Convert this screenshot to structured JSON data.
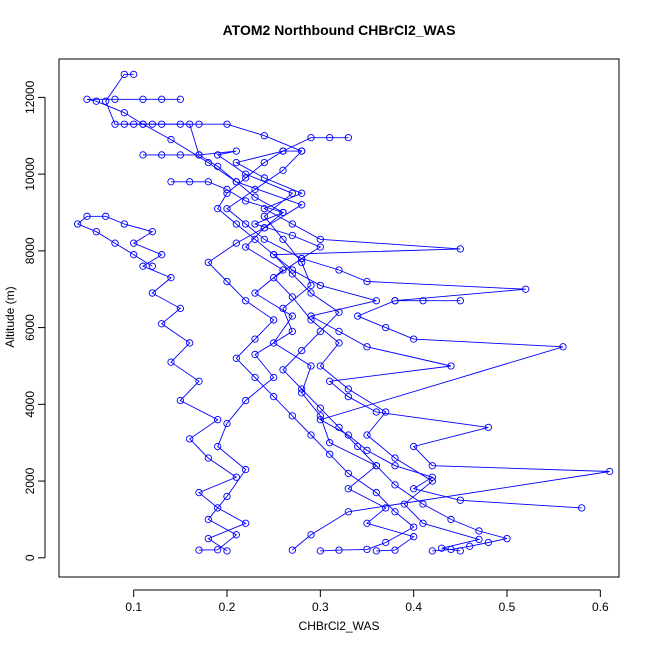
{
  "chart_data": {
    "type": "scatter",
    "title": "ATOM2 Northbound CHBrCl2_WAS",
    "xlabel": "CHBrCl2_WAS",
    "ylabel": "Altitude (m)",
    "xlim": [
      0.02,
      0.62
    ],
    "ylim": [
      -500,
      13000
    ],
    "x_ticks": [
      0.1,
      0.2,
      0.3,
      0.4,
      0.5,
      0.6
    ],
    "y_ticks": [
      0,
      2000,
      4000,
      6000,
      8000,
      10000,
      12000
    ],
    "x_tick_labels": [
      "0.1",
      "0.2",
      "0.3",
      "0.4",
      "0.5",
      "0.6"
    ],
    "y_tick_labels": [
      "0",
      "2000",
      "4000",
      "6000",
      "8000",
      "10000",
      "12000"
    ],
    "grid": false,
    "legend": "none",
    "marker": "open-circle",
    "connected": true,
    "color": "#0000ff",
    "series": [
      {
        "x": [
          0.17,
          0.19,
          0.21,
          0.18,
          0.2,
          0.22,
          0.19,
          0.2,
          0.22,
          0.25,
          0.23,
          0.27,
          0.26,
          0.29,
          0.28,
          0.26,
          0.24,
          0.27,
          0.22,
          0.19,
          0.21,
          0.17,
          0.16,
          0.12,
          0.1,
          0.08,
          0.07,
          0.09,
          0.1
        ],
        "y": [
          200,
          210,
          600,
          1000,
          1600,
          2300,
          2900,
          3500,
          4100,
          4700,
          5300,
          5900,
          6500,
          7100,
          7700,
          8300,
          8900,
          9500,
          10000,
          10500,
          10600,
          10500,
          11300,
          11300,
          11300,
          11300,
          11900,
          12600,
          12600
        ]
      },
      {
        "x": [
          0.36,
          0.38,
          0.4,
          0.35,
          0.37,
          0.33,
          0.36,
          0.31,
          0.3,
          0.28,
          0.29,
          0.25,
          0.27,
          0.23,
          0.26,
          0.22,
          0.24,
          0.28,
          0.21,
          0.18,
          0.14,
          0.11,
          0.09,
          0.06,
          0.05,
          0.08,
          0.11,
          0.13,
          0.15
        ],
        "y": [
          180,
          200,
          550,
          900,
          1300,
          1800,
          2400,
          3000,
          3700,
          4300,
          5000,
          5600,
          6300,
          6900,
          7500,
          8100,
          8600,
          9200,
          9800,
          10300,
          10900,
          11300,
          11600,
          11900,
          11950,
          11950,
          11950,
          11950,
          11950
        ]
      },
      {
        "x": [
          0.45,
          0.43,
          0.47,
          0.41,
          0.39,
          0.42,
          0.38,
          0.35,
          0.37,
          0.33,
          0.3,
          0.32,
          0.29,
          0.27,
          0.25,
          0.28,
          0.24,
          0.22,
          0.2,
          0.23,
          0.26,
          0.28,
          0.24,
          0.2,
          0.17,
          0.15,
          0.13,
          0.11,
          0.09
        ],
        "y": [
          180,
          250,
          480,
          900,
          1400,
          2000,
          2600,
          3200,
          3800,
          4400,
          5000,
          5600,
          6200,
          6800,
          7300,
          7800,
          8300,
          8700,
          9100,
          9600,
          10100,
          10600,
          11000,
          11300,
          11300,
          11300,
          11300,
          11300,
          11300
        ]
      },
      {
        "x": [
          0.27,
          0.29,
          0.33,
          0.61,
          0.42,
          0.4,
          0.48,
          0.36,
          0.33,
          0.31,
          0.44,
          0.35,
          0.32,
          0.29,
          0.36,
          0.3,
          0.27,
          0.25,
          0.45,
          0.3,
          0.27,
          0.24,
          0.28,
          0.24,
          0.21,
          0.26,
          0.29,
          0.31,
          0.33
        ],
        "y": [
          200,
          600,
          1200,
          2250,
          2400,
          2900,
          3400,
          3800,
          4200,
          4600,
          5000,
          5500,
          5900,
          6300,
          6700,
          7100,
          7500,
          7900,
          8050,
          8300,
          8700,
          9100,
          9500,
          9900,
          10300,
          10600,
          10950,
          10950,
          10950
        ]
      },
      {
        "x": [
          0.58,
          0.45,
          0.4,
          0.42,
          0.38,
          0.35,
          0.33,
          0.3,
          0.56,
          0.4,
          0.37,
          0.34,
          0.38,
          0.45,
          0.41,
          0.38,
          0.52,
          0.35,
          0.32,
          0.28,
          0.3,
          0.27,
          0.23,
          0.26,
          0.22,
          0.2,
          0.18,
          0.16,
          0.14
        ],
        "y": [
          1300,
          1500,
          1800,
          2100,
          2400,
          2800,
          3200,
          3600,
          5500,
          5700,
          6000,
          6300,
          6700,
          6700,
          6700,
          6700,
          7000,
          7200,
          7500,
          7800,
          8100,
          8400,
          8700,
          9000,
          9300,
          9600,
          9800,
          9800,
          9800
        ]
      },
      {
        "x": [
          0.2,
          0.18,
          0.22,
          0.19,
          0.17,
          0.21,
          0.18,
          0.16,
          0.19,
          0.15,
          0.17,
          0.14,
          0.16,
          0.13,
          0.15,
          0.12,
          0.14,
          0.11,
          0.13,
          0.1,
          0.12,
          0.09,
          0.07,
          0.05,
          0.04,
          0.06,
          0.08,
          0.1,
          0.12
        ],
        "y": [
          180,
          500,
          900,
          1300,
          1700,
          2100,
          2600,
          3100,
          3600,
          4100,
          4600,
          5100,
          5600,
          6100,
          6500,
          6900,
          7300,
          7600,
          7900,
          8200,
          8500,
          8700,
          8900,
          8900,
          8700,
          8500,
          8200,
          7900,
          7600
        ]
      },
      {
        "x": [
          0.3,
          0.32,
          0.35,
          0.37,
          0.4,
          0.38,
          0.36,
          0.33,
          0.31,
          0.29,
          0.27,
          0.25,
          0.23,
          0.21,
          0.23,
          0.25,
          0.22,
          0.2,
          0.18,
          0.21,
          0.24,
          0.26,
          0.23,
          0.21,
          0.19,
          0.17,
          0.15,
          0.13,
          0.11
        ],
        "y": [
          180,
          200,
          220,
          400,
          800,
          1200,
          1700,
          2200,
          2700,
          3200,
          3700,
          4200,
          4700,
          5200,
          5700,
          6200,
          6700,
          7200,
          7700,
          8200,
          8600,
          9000,
          9400,
          9800,
          10200,
          10500,
          10500,
          10500,
          10500
        ]
      },
      {
        "x": [
          0.42,
          0.44,
          0.46,
          0.48,
          0.5,
          0.47,
          0.44,
          0.41,
          0.38,
          0.36,
          0.34,
          0.32,
          0.3,
          0.28,
          0.26,
          0.28,
          0.3,
          0.32,
          0.29,
          0.27,
          0.25,
          0.23,
          0.21,
          0.19,
          0.2,
          0.22,
          0.24,
          0.26,
          0.28
        ],
        "y": [
          180,
          220,
          300,
          400,
          500,
          700,
          1000,
          1400,
          1900,
          2400,
          2900,
          3400,
          3900,
          4400,
          4900,
          5400,
          5900,
          6400,
          6900,
          7400,
          7900,
          8300,
          8700,
          9100,
          9500,
          9900,
          10300,
          10600,
          10600
        ]
      }
    ]
  }
}
